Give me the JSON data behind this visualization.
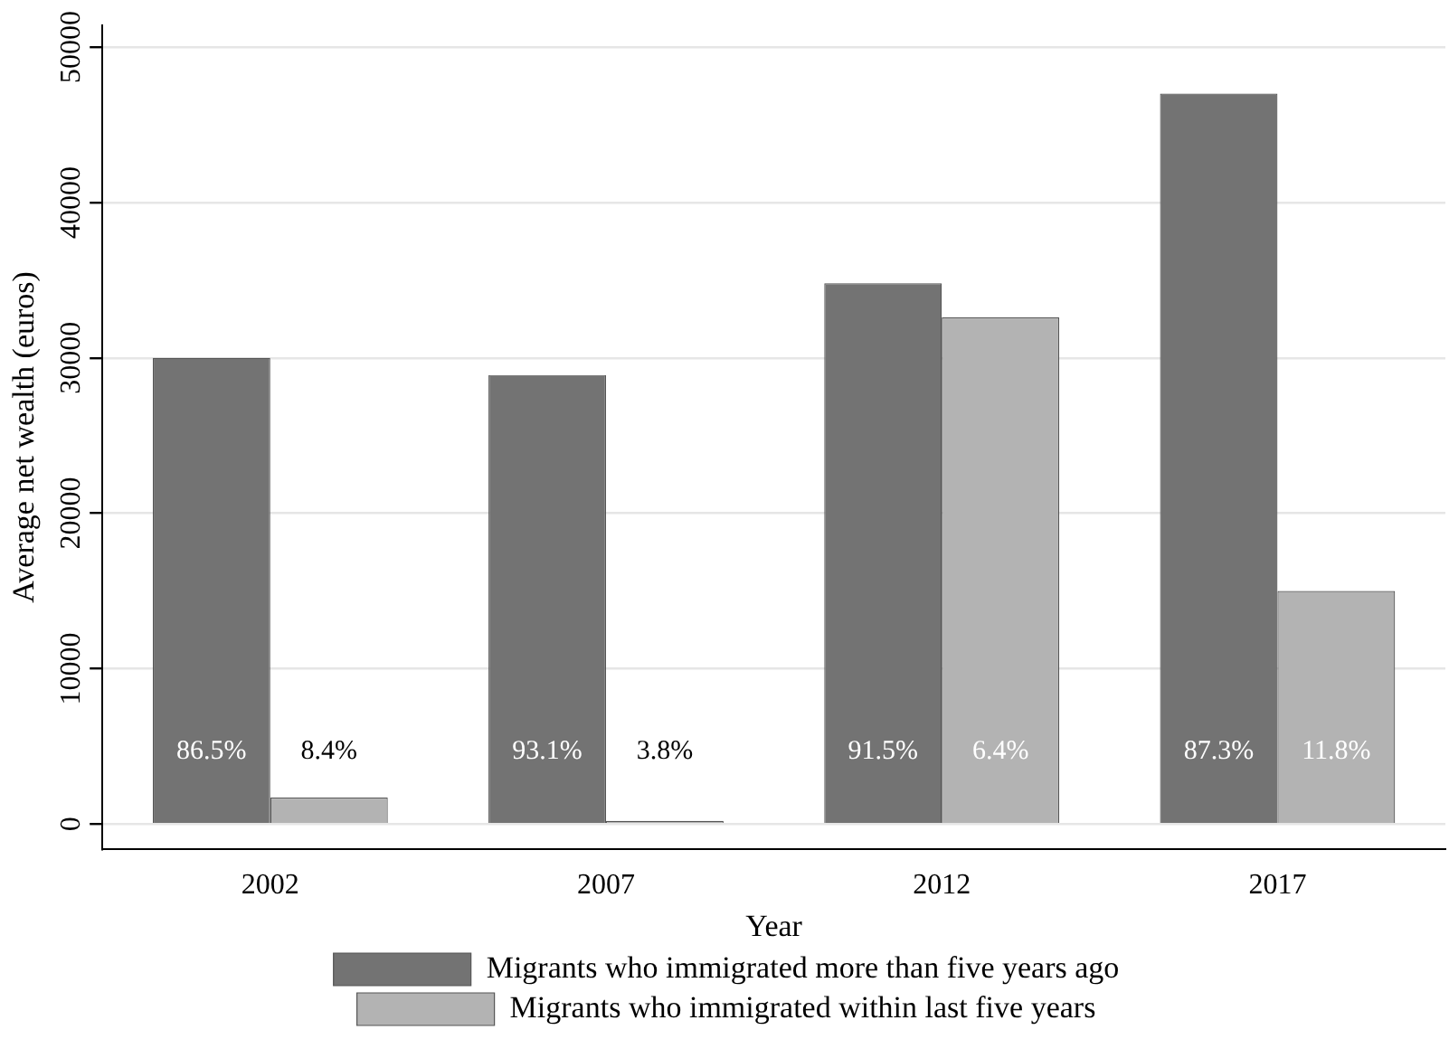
{
  "chart_data": {
    "type": "bar",
    "xlabel": "Year",
    "ylabel": "Average net wealth (euros)",
    "categories": [
      "2002",
      "2007",
      "2012",
      "2017"
    ],
    "series": [
      {
        "name": "Migrants who immigrated more than five years ago",
        "color": "#737373",
        "values": [
          30000,
          28900,
          34800,
          47000
        ]
      },
      {
        "name": "Migrants who immigrated within last five years",
        "color": "#b3b3b3",
        "values": [
          1700,
          200,
          32600,
          15000
        ]
      }
    ],
    "ylim": [
      -1600,
      51400
    ],
    "yticks": [
      0,
      10000,
      20000,
      30000,
      40000,
      50000
    ],
    "grid": "y",
    "legend": "bottom",
    "annotations": [
      "86.5%",
      "8.4%",
      "93.1%",
      "3.8%",
      "91.5%",
      "6.4%",
      "87.3%",
      "11.8%"
    ]
  }
}
